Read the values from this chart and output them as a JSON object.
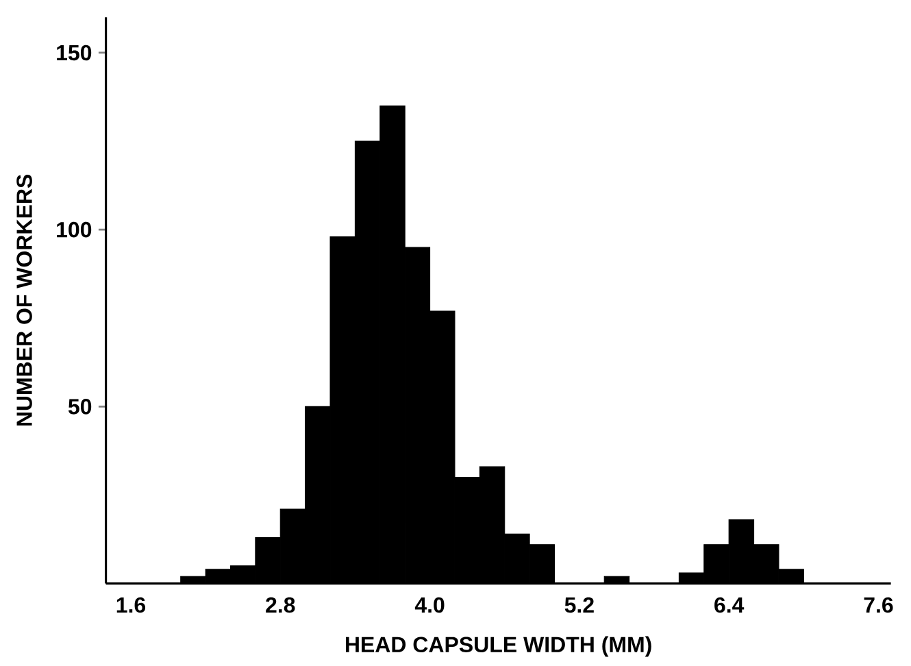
{
  "chart_data": {
    "type": "histogram",
    "xlabel": "HEAD CAPSULE WIDTH (MM)",
    "ylabel": "NUMBER OF WORKERS",
    "bins": [
      2.0,
      2.2,
      2.4,
      2.6,
      2.8,
      3.0,
      3.2,
      3.4,
      3.6,
      3.8,
      4.0,
      4.2,
      4.4,
      4.6,
      4.8,
      5.0,
      5.2,
      5.4,
      5.6,
      5.8,
      6.0,
      6.2,
      6.4,
      6.6,
      6.8,
      7.0
    ],
    "values": [
      2,
      4,
      5,
      13,
      21,
      50,
      98,
      125,
      135,
      95,
      77,
      30,
      33,
      14,
      11,
      0,
      0,
      2,
      0,
      0,
      3,
      11,
      18,
      11,
      4
    ],
    "color": "#000000",
    "xlim": [
      1.4,
      7.7
    ],
    "ylim": [
      0,
      160
    ],
    "xticks": [
      {
        "value": 1.6,
        "label": "1.6"
      },
      {
        "value": 2.8,
        "label": "2.8"
      },
      {
        "value": 4.0,
        "label": "4.0"
      },
      {
        "value": 5.2,
        "label": "5.2"
      },
      {
        "value": 6.4,
        "label": "6.4"
      },
      {
        "value": 7.6,
        "label": "7.6"
      }
    ],
    "yticks": [
      50,
      100,
      150
    ]
  }
}
